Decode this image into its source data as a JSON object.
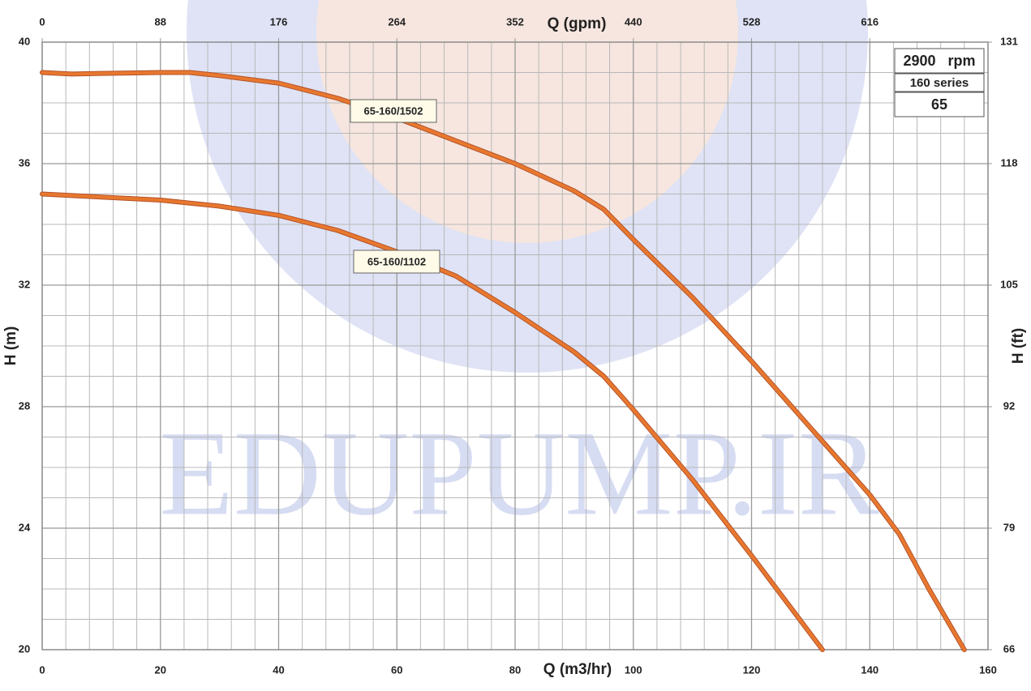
{
  "chart_data": {
    "type": "line",
    "watermark": "EDUPUMP.IR",
    "xlabel": "Q (m3/hr)",
    "x2label": "Q (gpm)",
    "ylabel": "H (m)",
    "y2label": "H (ft)",
    "xlim": [
      0,
      160
    ],
    "xticks": [
      0,
      20,
      40,
      60,
      80,
      100,
      120,
      140,
      160
    ],
    "x2lim": [
      0,
      704
    ],
    "x2ticks": [
      0,
      88,
      176,
      264,
      352,
      440,
      528,
      616
    ],
    "ylim": [
      20,
      40
    ],
    "yticks": [
      20,
      24,
      28,
      32,
      36,
      40
    ],
    "y2lim": [
      65.62,
      131.23
    ],
    "y2ticks": [
      {
        "value": 65.62,
        "label": "66"
      },
      {
        "value": 78.74,
        "label": "79"
      },
      {
        "value": 91.86,
        "label": "92"
      },
      {
        "value": 104.99,
        "label": "105"
      },
      {
        "value": 118.11,
        "label": "118"
      },
      {
        "value": 131.23,
        "label": "131"
      }
    ],
    "xminorticks": [
      4,
      8,
      12,
      16,
      24,
      28,
      32,
      36,
      44,
      48,
      52,
      56,
      64,
      68,
      72,
      76,
      84,
      88,
      92,
      96,
      104,
      108,
      112,
      116,
      124,
      128,
      132,
      136,
      144,
      148,
      152,
      156
    ],
    "yminorticks": [
      21,
      22,
      23,
      25,
      26,
      27,
      29,
      30,
      31,
      33,
      34,
      35,
      37,
      38,
      39
    ],
    "grid": true,
    "info": [
      "2900   rpm",
      "160 series",
      "65"
    ],
    "series": [
      {
        "name": "65-160/1502",
        "color": "#e8782f",
        "x": [
          0,
          5,
          10,
          20,
          25,
          30,
          40,
          50,
          60,
          70,
          80,
          90,
          95,
          100,
          110,
          120,
          130,
          140,
          145,
          150,
          156
        ],
        "values": [
          39,
          38.95,
          38.97,
          39,
          39,
          38.9,
          38.65,
          38.15,
          37.5,
          36.75,
          36.0,
          35.1,
          34.5,
          33.5,
          31.6,
          29.5,
          27.3,
          25.1,
          23.8,
          22.0,
          20.0
        ]
      },
      {
        "name": "65-160/1102",
        "color": "#e8782f",
        "x": [
          0,
          10,
          20,
          30,
          40,
          50,
          60,
          70,
          80,
          90,
          95,
          100,
          110,
          120,
          132
        ],
        "values": [
          35,
          34.9,
          34.8,
          34.6,
          34.3,
          33.8,
          33.1,
          32.3,
          31.1,
          29.8,
          29.0,
          27.9,
          25.6,
          23.1,
          20.0
        ]
      }
    ]
  }
}
